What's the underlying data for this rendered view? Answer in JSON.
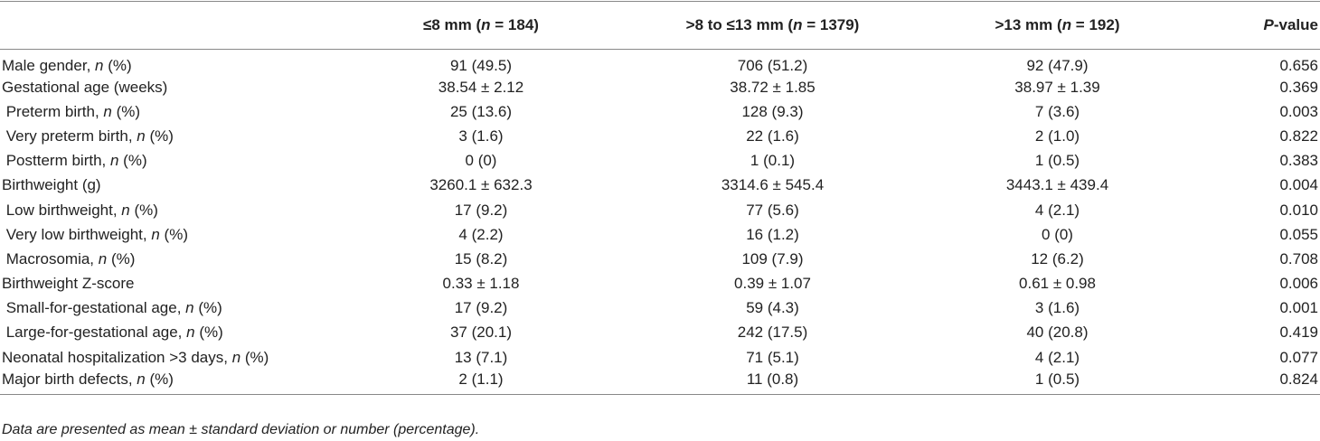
{
  "table": {
    "header": [
      "",
      "≤8 mm (n = 184)",
      ">8 to ≤13 mm (n = 1379)",
      ">13 mm (n = 192)",
      "P-value"
    ],
    "rows": [
      [
        "Male gender, n (%)",
        "91 (49.5)",
        "706 (51.2)",
        "92 (47.9)",
        "0.656"
      ],
      [
        "Gestational age (weeks)",
        "38.54 ± 2.12",
        "38.72 ± 1.85",
        "38.97 ± 1.39",
        "0.369"
      ],
      [
        " Preterm birth, n (%)",
        "25 (13.6)",
        "128 (9.3)",
        "7 (3.6)",
        "0.003"
      ],
      [
        " Very preterm birth, n (%)",
        "3 (1.6)",
        "22 (1.6)",
        "2 (1.0)",
        "0.822"
      ],
      [
        " Postterm birth, n (%)",
        "0 (0)",
        "1 (0.1)",
        "1 (0.5)",
        "0.383"
      ],
      [
        "Birthweight (g)",
        "3260.1 ± 632.3",
        "3314.6 ± 545.4",
        "3443.1 ± 439.4",
        "0.004"
      ],
      [
        " Low birthweight, n (%)",
        "17 (9.2)",
        "77 (5.6)",
        "4 (2.1)",
        "0.010"
      ],
      [
        " Very low birthweight, n (%)",
        "4 (2.2)",
        "16 (1.2)",
        "0 (0)",
        "0.055"
      ],
      [
        " Macrosomia, n (%)",
        "15 (8.2)",
        "109 (7.9)",
        "12 (6.2)",
        "0.708"
      ],
      [
        "Birthweight Z-score",
        "0.33 ± 1.18",
        "0.39 ± 1.07",
        "0.61 ± 0.98",
        "0.006"
      ],
      [
        " Small-for-gestational age, n (%)",
        "17 (9.2)",
        "59 (4.3)",
        "3 (1.6)",
        "0.001"
      ],
      [
        " Large-for-gestational age, n (%)",
        "37 (20.1)",
        "242 (17.5)",
        "40 (20.8)",
        "0.419"
      ],
      [
        "Neonatal hospitalization >3 days, n (%)",
        "13 (7.1)",
        "71 (5.1)",
        "4 (2.1)",
        "0.077"
      ],
      [
        "Major birth defects, n (%)",
        "2 (1.1)",
        "11 (0.8)",
        "1 (0.5)",
        "0.824"
      ]
    ],
    "footnote": "Data are presented as mean ± standard deviation or number (percentage)."
  }
}
